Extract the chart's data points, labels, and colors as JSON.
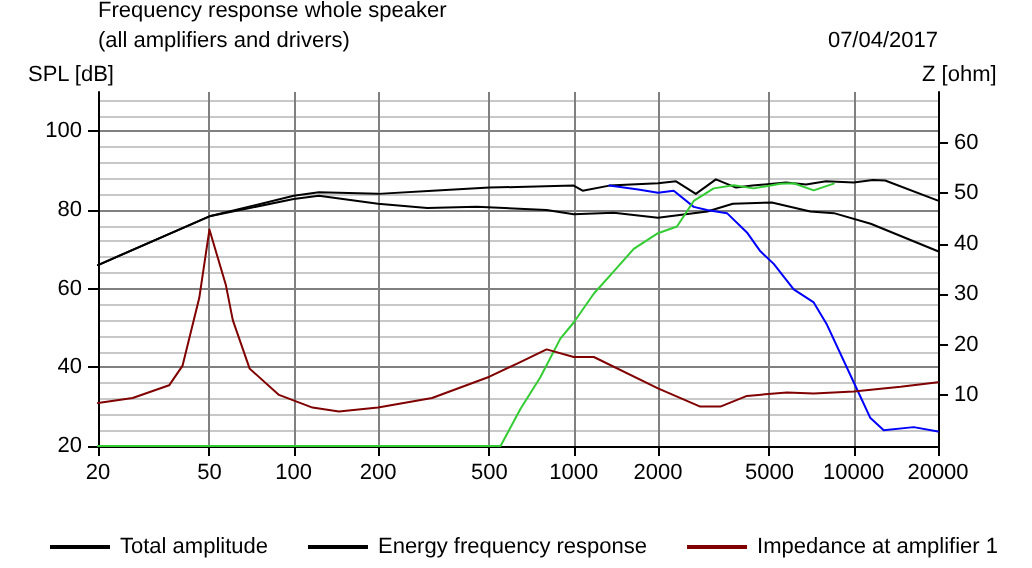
{
  "chart_data": {
    "type": "line",
    "title": "Frequency response whole speaker",
    "subtitle": "(all amplifiers and drivers)",
    "annotations": [
      "07/04/2017"
    ],
    "xlabel": null,
    "ylabel": "SPL [dB]",
    "y2label": "Z [ohm]",
    "log": "x",
    "grid": true,
    "legend": "bottom",
    "marker": "none",
    "line_style": "solid",
    "xlim": [
      20,
      20000
    ],
    "xticks": [
      20,
      50,
      100,
      200,
      500,
      1000,
      2000,
      5000,
      10000,
      20000
    ],
    "ylim": [
      20,
      110
    ],
    "yticks": [
      20,
      40,
      60,
      80,
      100
    ],
    "y2lim": [
      0,
      70
    ],
    "y2ticks": [
      10,
      20,
      30,
      40,
      50,
      60
    ],
    "series": [
      {
        "name": "Total amplitude",
        "color": "#000000",
        "x": [
          20,
          50,
          100,
          123,
          200,
          313,
          500,
          1000,
          1076,
          1340,
          2000,
          2320,
          2730,
          3220,
          3800,
          4350,
          5730,
          6760,
          7960,
          10000,
          11700,
          12950,
          20000
        ],
        "values": [
          66,
          78.4,
          83.6,
          84.5,
          84.1,
          84.9,
          85.7,
          86.2,
          84.9,
          86.2,
          86.8,
          87.3,
          84.1,
          87.8,
          85.7,
          86.2,
          87.0,
          86.5,
          87.3,
          87.0,
          87.6,
          87.5,
          82.4
        ]
      },
      {
        "name": "Energy frequency response",
        "color": "#000000",
        "x": [
          20,
          50,
          100,
          123,
          200,
          300,
          450,
          800,
          1000,
          1390,
          2000,
          3000,
          3700,
          5100,
          7000,
          8500,
          11500,
          20000
        ],
        "values": [
          66,
          78.4,
          82.8,
          83.6,
          81.6,
          80.5,
          80.8,
          80,
          78.9,
          79.3,
          78,
          79.6,
          81.6,
          81.9,
          79.6,
          79.2,
          76.5,
          69.5
        ]
      },
      {
        "color": "#0000ff",
        "x": [
          1340,
          1700,
          2000,
          2276,
          2683,
          2992,
          3527,
          4156,
          4641,
          5180,
          6105,
          7197,
          8030,
          10000,
          11450,
          12800,
          16380,
          20000
        ],
        "values": [
          86.2,
          85.2,
          84.4,
          84.9,
          80.8,
          80,
          79.2,
          74.3,
          69.5,
          66.3,
          59.8,
          56.5,
          50.8,
          36.2,
          27.2,
          24,
          24.8,
          23.7
        ]
      },
      {
        "color": "#33cc33",
        "x": [
          20,
          520,
          548,
          645,
          760,
          896,
          1000,
          1179,
          1390,
          1638,
          2000,
          2338,
          2683,
          3162,
          3727,
          4392,
          5471,
          6105,
          7197,
          8483
        ],
        "values": [
          20,
          20,
          20,
          29.4,
          37.5,
          47.3,
          51.4,
          58.7,
          64.4,
          70.1,
          74.1,
          75.8,
          82.3,
          85.5,
          86.3,
          85.5,
          86.7,
          86.8,
          85.0,
          86.7
        ]
      },
      {
        "name": "Impedance at amplifier 1",
        "color": "#800000",
        "axis": "y2",
        "x": [
          20,
          26.6,
          35.9,
          40.1,
          46,
          50,
          57.2,
          60.6,
          69.6,
          88.6,
          116.7,
          145,
          200,
          312,
          500,
          639,
          800,
          1000,
          1180,
          2000,
          2830,
          3340,
          4156,
          5780,
          7197,
          10000,
          14700,
          20000
        ],
        "values": [
          8.5,
          9.5,
          12.0,
          15.9,
          29.3,
          42.8,
          31.9,
          24.9,
          15.3,
          10.1,
          7.6,
          6.8,
          7.6,
          9.5,
          13.7,
          16.5,
          19.1,
          17.6,
          17.6,
          11.4,
          7.8,
          7.8,
          9.9,
          10.6,
          10.4,
          10.8,
          11.7,
          12.6
        ]
      }
    ]
  }
}
